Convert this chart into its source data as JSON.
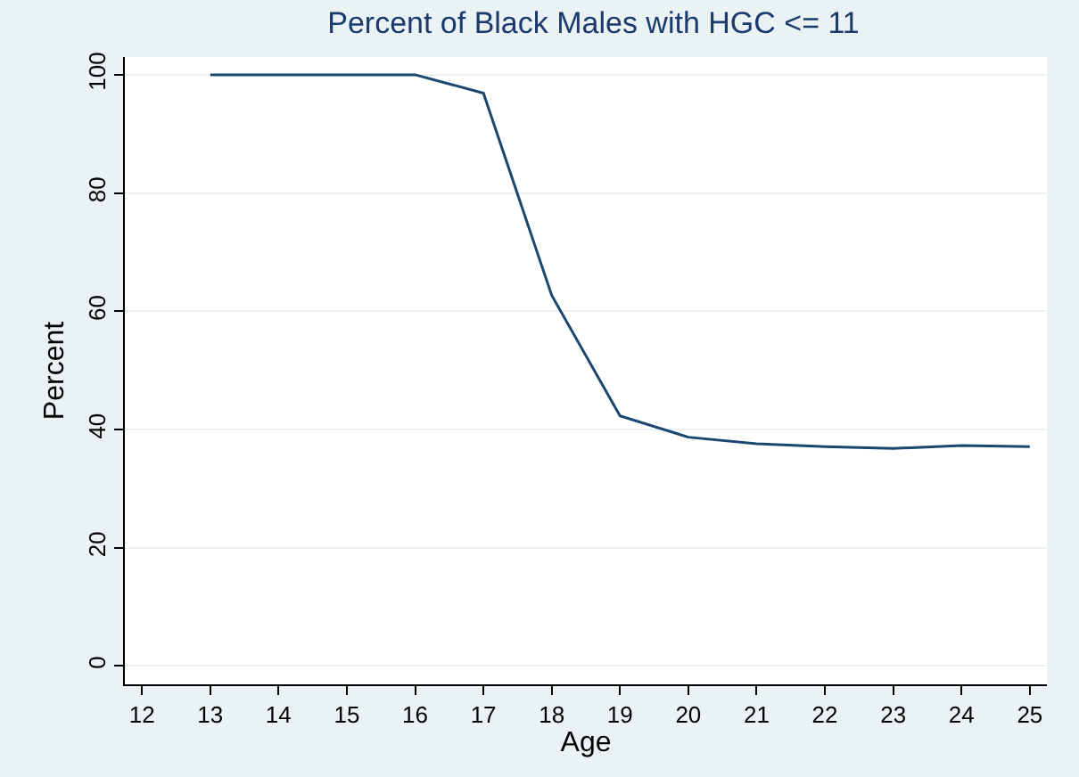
{
  "chart_data": {
    "type": "line",
    "title": "Percent of Black Males with HGC <= 11",
    "xlabel": "Age",
    "ylabel": "Percent",
    "x": [
      13,
      14,
      15,
      16,
      17,
      18,
      19,
      20,
      21,
      22,
      23,
      24,
      25
    ],
    "series": [
      {
        "color": "#1a476f",
        "values": [
          100,
          100,
          100,
          100,
          96.9,
          62.7,
          42.3,
          38.7,
          37.6,
          37.1,
          36.8,
          37.3,
          37.1
        ]
      }
    ],
    "xlim": [
      11.75,
      25.25
    ],
    "xticks": [
      12,
      13,
      14,
      15,
      16,
      17,
      18,
      19,
      20,
      21,
      22,
      23,
      24,
      25
    ],
    "ylim": [
      -3.1,
      103
    ],
    "yticks": [
      0,
      20,
      40,
      60,
      80,
      100
    ],
    "grid": "y",
    "marker": "none",
    "line_style": "solid"
  }
}
